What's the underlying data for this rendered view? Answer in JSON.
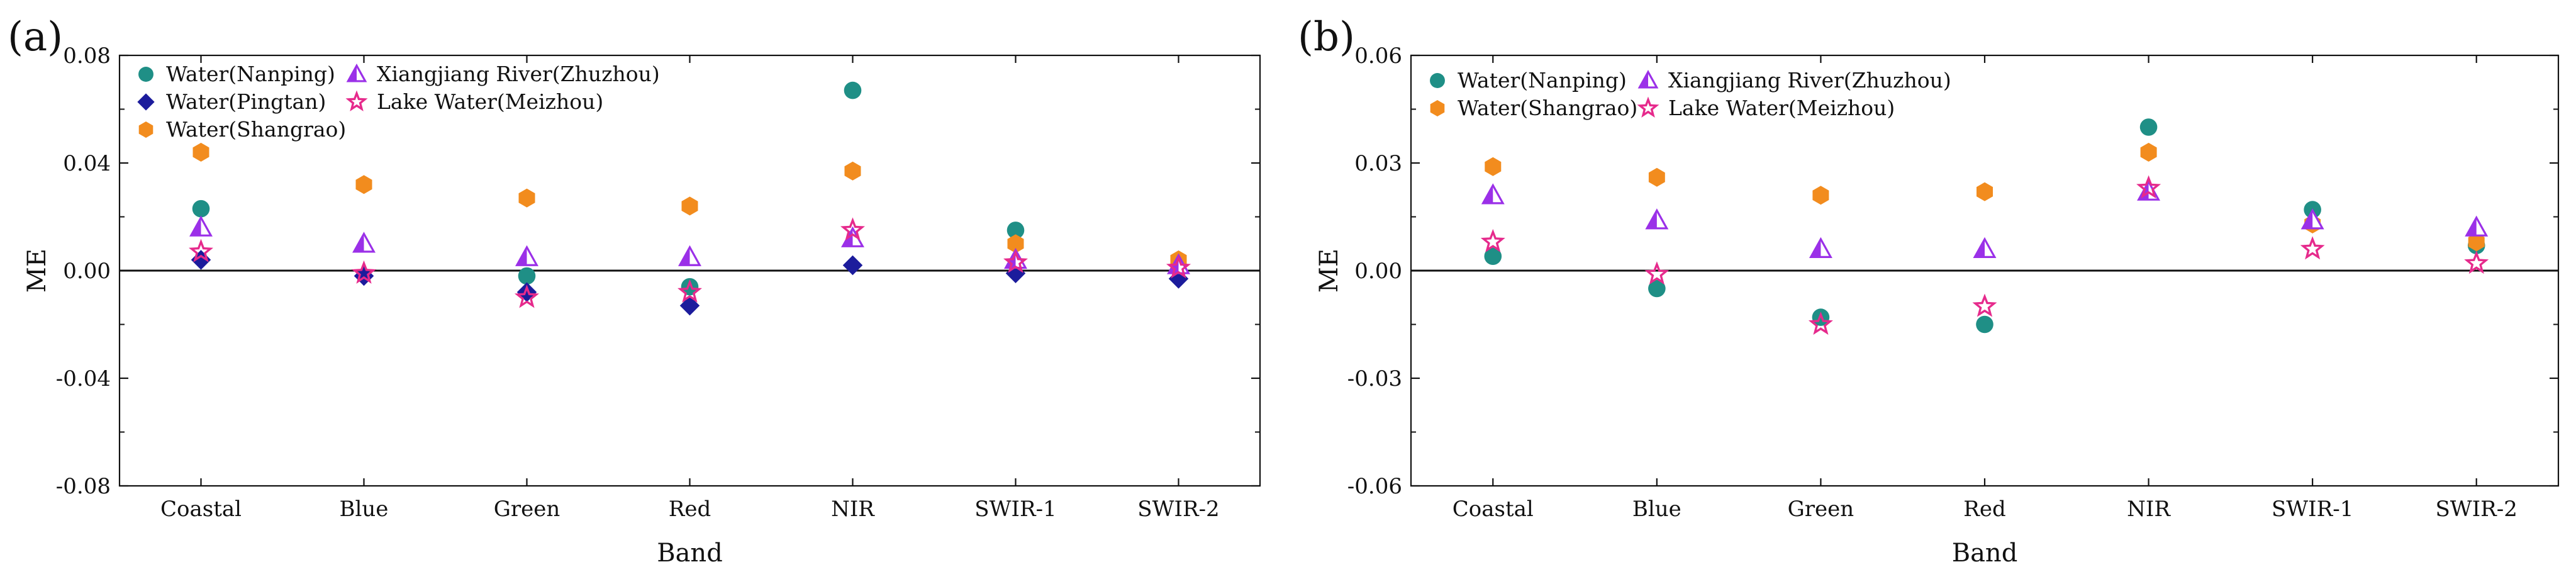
{
  "chart_data": [
    {
      "panel_label": "(a)",
      "type": "scatter",
      "title": "",
      "xlabel": "Band",
      "ylabel": "ME",
      "categories": [
        "Coastal",
        "Blue",
        "Green",
        "Red",
        "NIR",
        "SWIR-1",
        "SWIR-2"
      ],
      "ylim": [
        -0.08,
        0.08
      ],
      "yticks": [
        -0.08,
        -0.04,
        0.0,
        0.04,
        0.08
      ],
      "ytick_labels": [
        "-0.08",
        "-0.04",
        "0.00",
        "0.04",
        "0.08"
      ],
      "legend_position": "top-left",
      "zero_line": true,
      "series": [
        {
          "name": "Water(Nanping)",
          "marker": "circle",
          "color": "#1f8f86",
          "values": [
            0.023,
            null,
            -0.002,
            -0.006,
            0.067,
            0.015,
            null
          ]
        },
        {
          "name": "Water(Pingtan)",
          "marker": "diamond",
          "color": "#1c1c9c",
          "values": [
            0.004,
            -0.002,
            -0.008,
            -0.013,
            0.002,
            -0.001,
            -0.003
          ]
        },
        {
          "name": "Water(Shangrao)",
          "marker": "hexagon",
          "color": "#f28c1e",
          "values": [
            0.044,
            0.032,
            0.027,
            0.024,
            0.037,
            0.01,
            0.004
          ]
        },
        {
          "name": "Xiangjiang River(Zhuzhou)",
          "marker": "half-triangle",
          "color": "#9b30e8",
          "values": [
            0.016,
            0.01,
            0.005,
            0.005,
            0.012,
            0.004,
            0.002
          ]
        },
        {
          "name": "Lake Water(Meizhou)",
          "marker": "star",
          "color": "#e62a8c",
          "values": [
            0.007,
            -0.001,
            -0.01,
            -0.008,
            0.015,
            0.003,
            0.001
          ]
        }
      ]
    },
    {
      "panel_label": "(b)",
      "type": "scatter",
      "title": "",
      "xlabel": "Band",
      "ylabel": "ME",
      "categories": [
        "Coastal",
        "Blue",
        "Green",
        "Red",
        "NIR",
        "SWIR-1",
        "SWIR-2"
      ],
      "ylim": [
        -0.06,
        0.06
      ],
      "yticks": [
        -0.06,
        -0.03,
        0.0,
        0.03,
        0.06
      ],
      "ytick_labels": [
        "-0.06",
        "-0.03",
        "0.00",
        "0.03",
        "0.06"
      ],
      "legend_position": "top-left",
      "zero_line": true,
      "series": [
        {
          "name": "Water(Nanping)",
          "marker": "circle",
          "color": "#1f8f86",
          "values": [
            0.004,
            -0.005,
            -0.013,
            -0.015,
            0.04,
            0.017,
            0.007
          ]
        },
        {
          "name": "Water(Shangrao)",
          "marker": "hexagon",
          "color": "#f28c1e",
          "values": [
            0.029,
            0.026,
            0.021,
            0.022,
            0.033,
            0.013,
            0.008
          ]
        },
        {
          "name": "Xiangjiang River(Zhuzhou)",
          "marker": "half-triangle",
          "color": "#9b30e8",
          "values": [
            0.021,
            0.014,
            0.006,
            0.006,
            0.022,
            0.014,
            0.012
          ]
        },
        {
          "name": "Lake Water(Meizhou)",
          "marker": "star",
          "color": "#e62a8c",
          "values": [
            0.008,
            -0.001,
            -0.015,
            -0.01,
            0.023,
            0.006,
            0.002
          ]
        }
      ]
    }
  ]
}
